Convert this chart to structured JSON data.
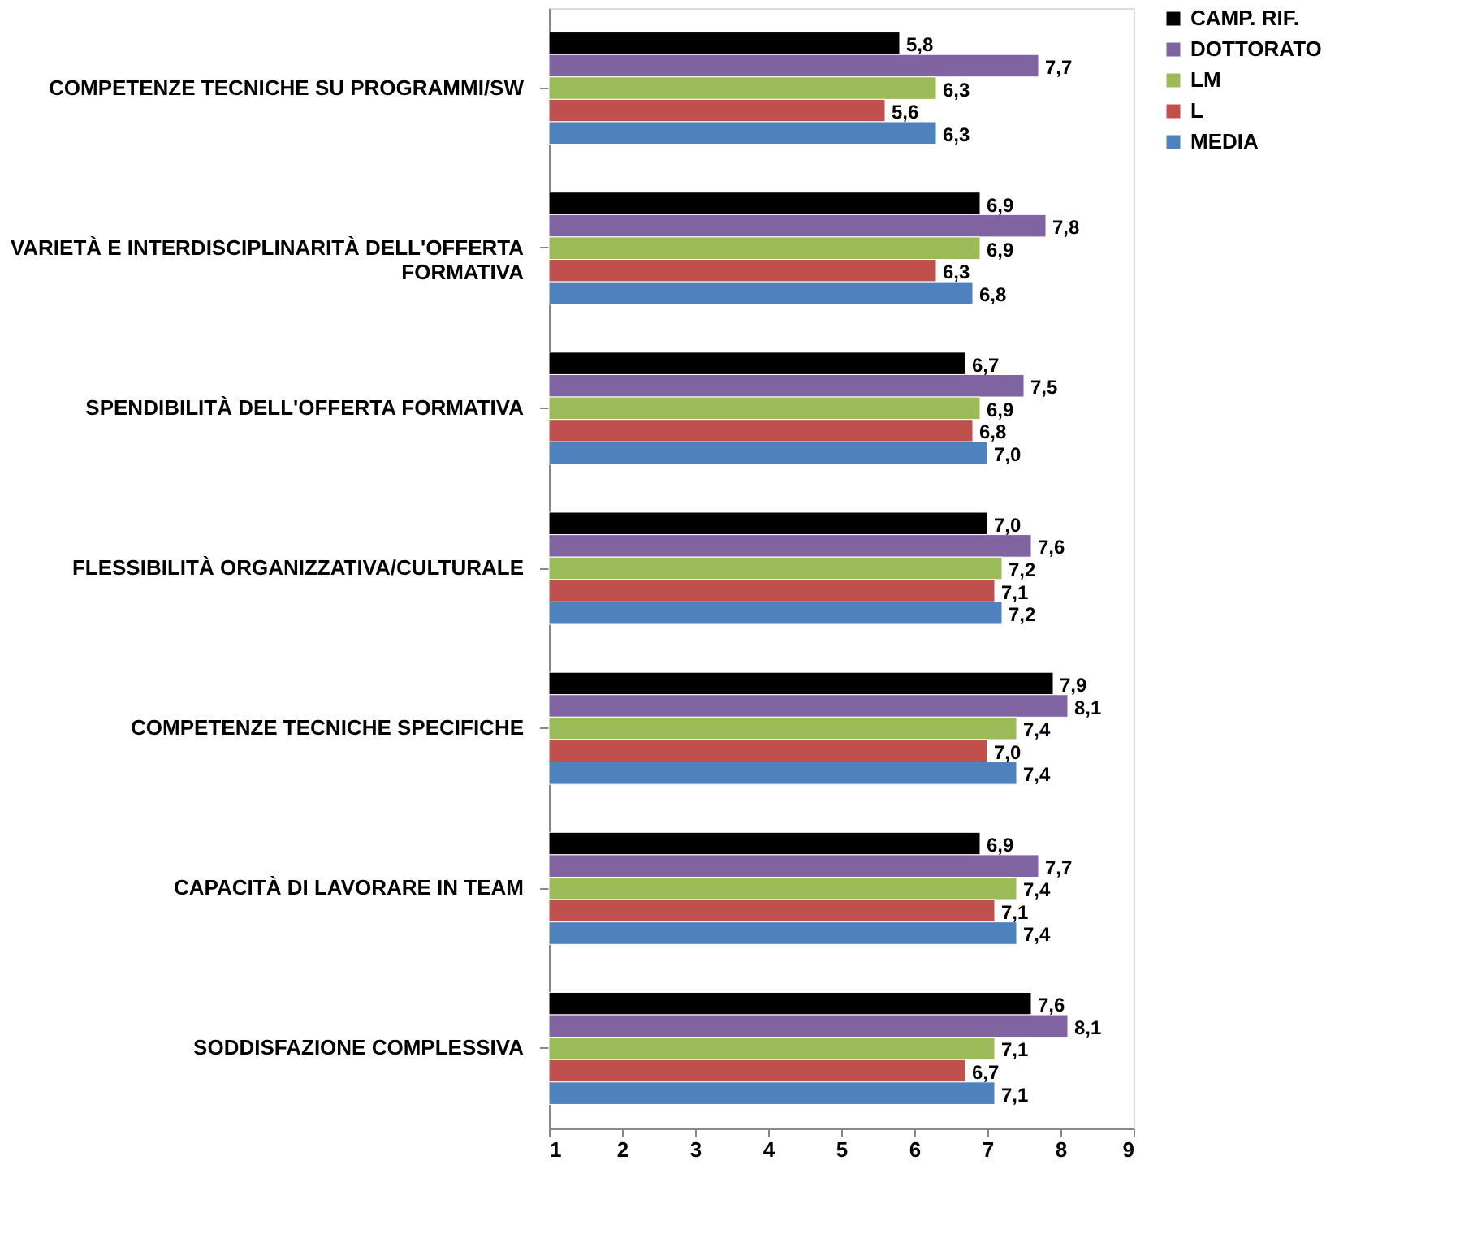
{
  "chart_data": {
    "type": "bar",
    "orientation": "horizontal",
    "categories": [
      "COMPETENZE TECNICHE SU PROGRAMMI/SW",
      "VARIETÀ E INTERDISCIPLINARITÀ DELL'OFFERTA\nFORMATIVA",
      "SPENDIBILITÀ DELL'OFFERTA FORMATIVA",
      "FLESSIBILITÀ ORGANIZZATIVA/CULTURALE",
      "COMPETENZE TECNICHE SPECIFICHE",
      "CAPACITÀ DI LAVORARE IN TEAM",
      "SODDISFAZIONE COMPLESSIVA"
    ],
    "series": [
      {
        "name": "CAMP. RIF.",
        "color": "#000000",
        "values": [
          5.8,
          6.9,
          6.7,
          7.0,
          7.9,
          6.9,
          7.6
        ],
        "value_labels": [
          "5,8",
          "6,9",
          "6,7",
          "7,0",
          "7,9",
          "6,9",
          "7,6"
        ]
      },
      {
        "name": "DOTTORATO",
        "color": "#8064a2",
        "values": [
          7.7,
          7.8,
          7.5,
          7.6,
          8.1,
          7.7,
          8.1
        ],
        "value_labels": [
          "7,7",
          "7,8",
          "7,5",
          "7,6",
          "8,1",
          "7,7",
          "8,1"
        ]
      },
      {
        "name": "LM",
        "color": "#9bbb59",
        "values": [
          6.3,
          6.9,
          6.9,
          7.2,
          7.4,
          7.4,
          7.1
        ],
        "value_labels": [
          "6,3",
          "6,9",
          "6,9",
          "7,2",
          "7,4",
          "7,4",
          "7,1"
        ]
      },
      {
        "name": "L",
        "color": "#c0504d",
        "values": [
          5.6,
          6.3,
          6.8,
          7.1,
          7.0,
          7.1,
          6.7
        ],
        "value_labels": [
          "5,6",
          "6,3",
          "6,8",
          "7,1",
          "7,0",
          "7,1",
          "6,7"
        ]
      },
      {
        "name": "MEDIA",
        "color": "#4f81bd",
        "values": [
          6.3,
          6.8,
          7.0,
          7.2,
          7.4,
          7.4,
          7.1
        ],
        "value_labels": [
          "6,3",
          "6,8",
          "7,0",
          "7,2",
          "7,4",
          "7,4",
          "7,1"
        ]
      }
    ],
    "xlim": [
      1,
      9
    ],
    "xticks": [
      1,
      2,
      3,
      4,
      5,
      6,
      7,
      8,
      9
    ],
    "grid": false,
    "legend": "right"
  }
}
